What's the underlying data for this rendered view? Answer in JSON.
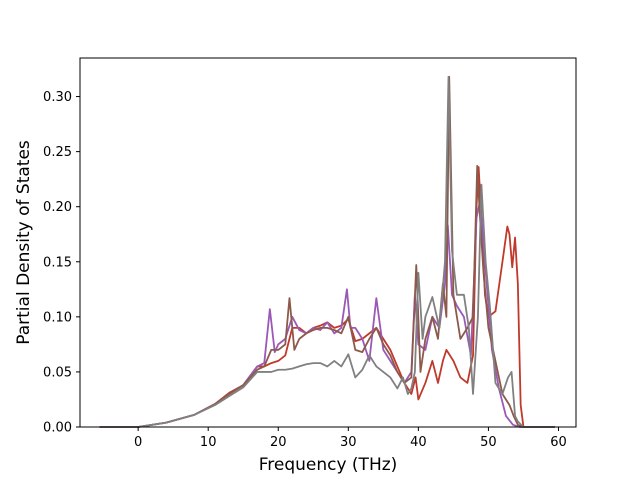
{
  "chart_data": {
    "type": "line",
    "title": "",
    "xlabel": "Frequency (THz)",
    "ylabel": "Partial Density of States",
    "xlim": [
      -8.3,
      62.5
    ],
    "ylim": [
      0.0,
      0.335
    ],
    "xticks": [
      0,
      10,
      20,
      30,
      40,
      50,
      60
    ],
    "yticks": [
      0.0,
      0.05,
      0.1,
      0.15,
      0.2,
      0.25,
      0.3
    ],
    "ytick_labels": [
      "0.00",
      "0.05",
      "0.10",
      "0.15",
      "0.20",
      "0.25",
      "0.30"
    ],
    "grid": false,
    "legend": "none",
    "series": [
      {
        "color": "#c0392b",
        "x": [
          -5.5,
          0,
          4,
          8,
          11,
          13,
          15,
          17,
          18,
          19,
          20,
          21,
          22,
          23,
          24,
          25,
          26,
          27,
          28,
          29,
          30,
          31,
          32,
          33,
          34,
          35,
          36,
          37,
          38,
          39,
          39.6,
          40,
          41,
          42,
          42.8,
          43.5,
          44,
          45,
          46,
          47,
          47.8,
          48.3,
          48.6,
          49,
          49.5,
          50,
          51,
          52,
          52.7,
          53,
          53.4,
          53.8,
          54.2,
          54.6,
          55,
          59.5
        ],
        "y": [
          0,
          0,
          0.004,
          0.011,
          0.021,
          0.031,
          0.038,
          0.055,
          0.055,
          0.058,
          0.06,
          0.065,
          0.09,
          0.09,
          0.085,
          0.09,
          0.092,
          0.095,
          0.09,
          0.092,
          0.098,
          0.078,
          0.08,
          0.085,
          0.09,
          0.08,
          0.07,
          0.055,
          0.04,
          0.03,
          0.045,
          0.025,
          0.04,
          0.06,
          0.04,
          0.06,
          0.07,
          0.06,
          0.045,
          0.04,
          0.065,
          0.2,
          0.236,
          0.19,
          0.12,
          0.1,
          0.105,
          0.15,
          0.182,
          0.175,
          0.145,
          0.172,
          0.13,
          0.02,
          0,
          0
        ]
      },
      {
        "color": "#9b59b6",
        "x": [
          -5.5,
          0,
          4,
          8,
          11,
          13,
          15,
          17,
          18,
          18.8,
          19.5,
          20,
          21,
          22,
          23,
          24,
          25,
          26,
          27,
          28,
          29,
          29.8,
          30.3,
          31,
          32,
          33,
          34,
          35,
          36,
          37,
          38,
          39,
          39.5,
          40,
          41,
          42,
          43,
          43.8,
          44.2,
          44.8,
          45.5,
          46.5,
          47.5,
          48.3,
          48.8,
          49.5,
          50.5,
          51.5,
          52.5,
          53.5,
          54.5,
          55,
          59.5
        ],
        "y": [
          0,
          0,
          0.004,
          0.011,
          0.021,
          0.03,
          0.038,
          0.055,
          0.058,
          0.107,
          0.068,
          0.075,
          0.08,
          0.1,
          0.088,
          0.085,
          0.09,
          0.088,
          0.095,
          0.085,
          0.09,
          0.125,
          0.09,
          0.09,
          0.08,
          0.06,
          0.117,
          0.07,
          0.06,
          0.05,
          0.04,
          0.05,
          0.12,
          0.075,
          0.07,
          0.1,
          0.09,
          0.13,
          0.183,
          0.12,
          0.11,
          0.1,
          0.065,
          0.19,
          0.205,
          0.15,
          0.07,
          0.035,
          0.01,
          0.002,
          0,
          0,
          0
        ]
      },
      {
        "color": "#8b5a4a",
        "x": [
          -5.5,
          0,
          4,
          8,
          11,
          13,
          15,
          17,
          18,
          19,
          20,
          21,
          21.6,
          22.3,
          23,
          24,
          25,
          26,
          27,
          28,
          29,
          30,
          31,
          32,
          33,
          34,
          35,
          36,
          37,
          38,
          39,
          39.7,
          40.3,
          41,
          42,
          42.8,
          43.5,
          44,
          44.4,
          45,
          46,
          47,
          47.8,
          48.4,
          48.8,
          49.3,
          50,
          51,
          52,
          53,
          53.6,
          54.2,
          55,
          59.5
        ],
        "y": [
          0,
          0,
          0.004,
          0.011,
          0.021,
          0.03,
          0.038,
          0.052,
          0.055,
          0.07,
          0.07,
          0.075,
          0.117,
          0.07,
          0.08,
          0.085,
          0.088,
          0.09,
          0.09,
          0.088,
          0.085,
          0.1,
          0.07,
          0.068,
          0.08,
          0.09,
          0.075,
          0.065,
          0.05,
          0.04,
          0.045,
          0.147,
          0.05,
          0.08,
          0.1,
          0.08,
          0.13,
          0.1,
          0.318,
          0.12,
          0.08,
          0.09,
          0.1,
          0.237,
          0.19,
          0.14,
          0.09,
          0.06,
          0.03,
          0.02,
          0.01,
          0.002,
          0,
          0
        ]
      },
      {
        "color": "#808080",
        "x": [
          -5.5,
          0,
          4,
          8,
          11,
          13,
          15,
          17,
          18,
          19,
          20,
          21,
          22,
          23,
          24,
          25,
          26,
          27,
          28,
          29,
          30,
          31,
          32,
          33,
          34,
          35,
          36,
          37,
          37.8,
          38.5,
          39,
          39.5,
          40,
          40.6,
          41,
          42,
          43,
          43.8,
          44.3,
          44.8,
          45.5,
          46.5,
          47.2,
          47.8,
          48.5,
          49,
          49.6,
          50.2,
          51,
          52,
          52.8,
          53.3,
          53.8,
          54.2,
          55,
          59.5
        ],
        "y": [
          0,
          0,
          0.004,
          0.011,
          0.02,
          0.028,
          0.036,
          0.05,
          0.05,
          0.05,
          0.052,
          0.052,
          0.053,
          0.055,
          0.057,
          0.058,
          0.058,
          0.055,
          0.06,
          0.055,
          0.066,
          0.045,
          0.052,
          0.065,
          0.055,
          0.05,
          0.045,
          0.035,
          0.045,
          0.03,
          0.035,
          0.05,
          0.14,
          0.08,
          0.1,
          0.118,
          0.09,
          0.15,
          0.318,
          0.16,
          0.12,
          0.12,
          0.09,
          0.03,
          0.1,
          0.22,
          0.15,
          0.11,
          0.04,
          0.03,
          0.045,
          0.05,
          0.01,
          0.005,
          0,
          0
        ]
      }
    ]
  }
}
